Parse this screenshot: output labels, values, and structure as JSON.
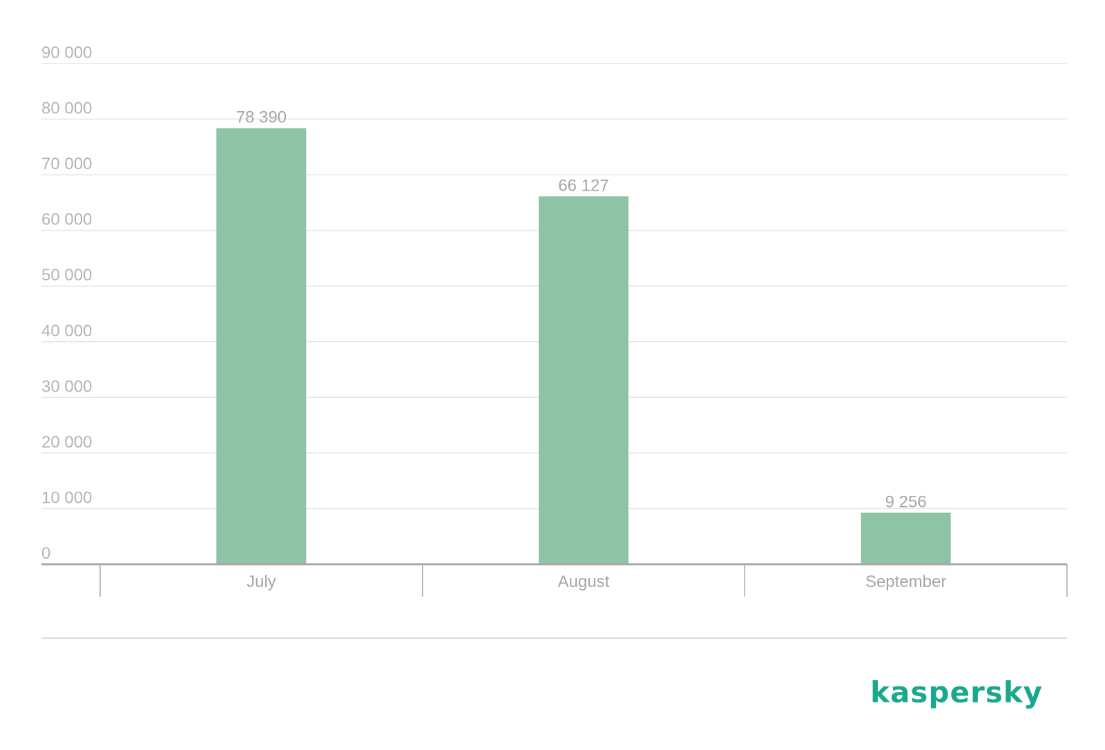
{
  "chart_data": {
    "type": "bar",
    "categories": [
      "July",
      "August",
      "September"
    ],
    "values": [
      78390,
      66127,
      9256
    ],
    "data_labels": [
      "78 390",
      "66 127",
      "9 256"
    ],
    "ylim": [
      0,
      90000
    ],
    "yticks": [
      0,
      10000,
      20000,
      30000,
      40000,
      50000,
      60000,
      70000,
      80000,
      90000
    ],
    "ytick_labels": [
      "0",
      "10 000",
      "20 000",
      "30 000",
      "40 000",
      "50 000",
      "60 000",
      "70 000",
      "80 000",
      "90 000"
    ],
    "title": "",
    "xlabel": "",
    "ylabel": "",
    "grid": true,
    "bar_color": "#8fc3a6"
  },
  "branding": {
    "logo_text": "kaspersky",
    "logo_color": "#1aa88c"
  },
  "colors": {
    "grid": "#e6e6e6",
    "axis": "#a8a8a8",
    "tick_text": "#b4b4b4"
  }
}
